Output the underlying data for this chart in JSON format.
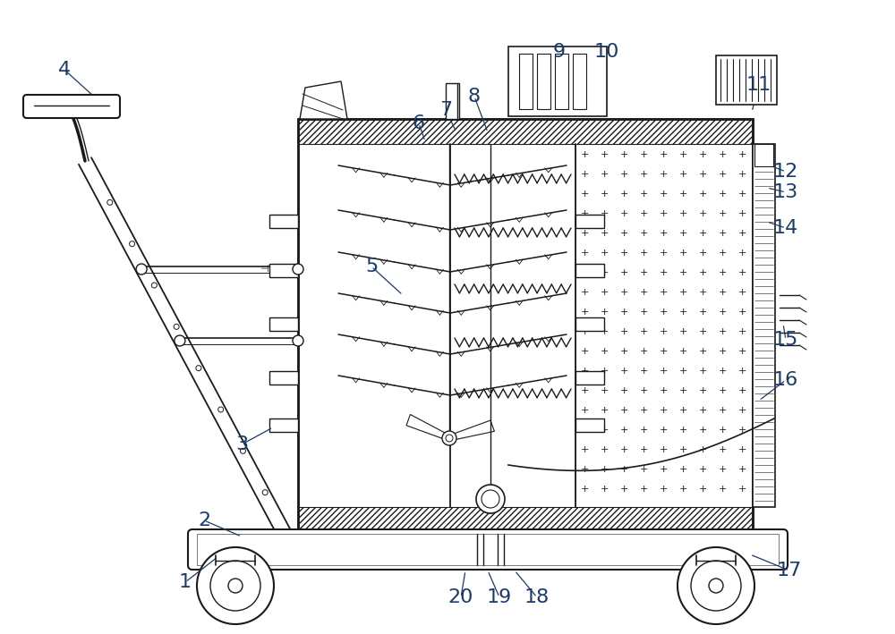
{
  "bg_color": "#ffffff",
  "lc": "#1a1a1a",
  "label_color": "#1a3a6a",
  "lw": 1.3,
  "tlw": 0.7,
  "figsize": [
    10.0,
    7.09
  ],
  "dpi": 100,
  "labels": [
    [
      "1",
      207,
      651,
      243,
      623
    ],
    [
      "2",
      228,
      582,
      270,
      600
    ],
    [
      "3",
      270,
      497,
      305,
      478
    ],
    [
      "4",
      72,
      78,
      105,
      108
    ],
    [
      "5",
      415,
      298,
      450,
      330
    ],
    [
      "6",
      468,
      138,
      475,
      158
    ],
    [
      "7",
      498,
      123,
      510,
      148
    ],
    [
      "8",
      530,
      108,
      545,
      148
    ],
    [
      "9",
      625,
      58,
      620,
      92
    ],
    [
      "10",
      678,
      58,
      660,
      125
    ],
    [
      "11",
      848,
      95,
      840,
      125
    ],
    [
      "12",
      878,
      192,
      855,
      183
    ],
    [
      "13",
      878,
      215,
      857,
      210
    ],
    [
      "14",
      878,
      255,
      857,
      248
    ],
    [
      "15",
      878,
      380,
      875,
      362
    ],
    [
      "16",
      878,
      425,
      848,
      448
    ],
    [
      "17",
      882,
      638,
      838,
      620
    ],
    [
      "18",
      600,
      668,
      575,
      638
    ],
    [
      "19",
      558,
      668,
      545,
      638
    ],
    [
      "20",
      515,
      668,
      520,
      638
    ]
  ]
}
